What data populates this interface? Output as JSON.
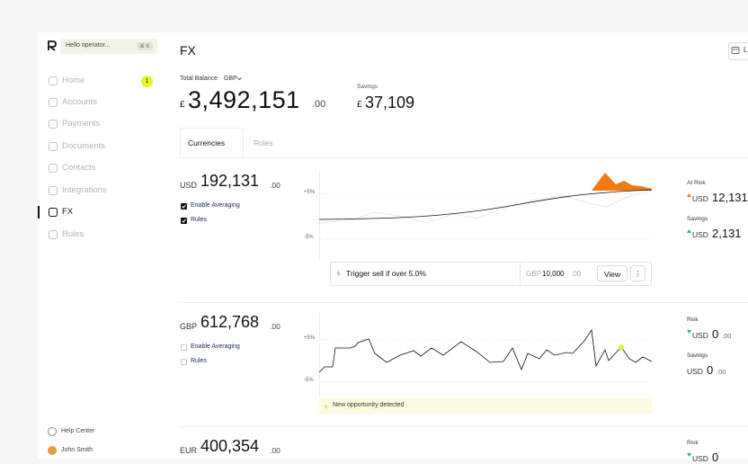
{
  "sidebar": {
    "search": "Hello operator...",
    "shortcut": "⌘ K",
    "nav": [
      {
        "label": "Home",
        "badge": "1"
      },
      {
        "label": "Accounts"
      },
      {
        "label": "Payments"
      },
      {
        "label": "Documents"
      },
      {
        "label": "Contacts"
      },
      {
        "label": "Integrations"
      },
      {
        "label": "FX",
        "active": true
      },
      {
        "label": "Rules"
      }
    ],
    "footer": [
      "Help Center",
      "John Smith"
    ]
  },
  "header": {
    "title": "FX",
    "button": "L"
  },
  "balance": {
    "label": "Total Balance",
    "currency": "GBP",
    "symbol": "£",
    "amount": "3,492,151",
    "cents": ".00"
  },
  "savings": {
    "label": "Savings",
    "symbol": "£",
    "amount": "37,109"
  },
  "tabs": [
    "Currencies",
    "Rules"
  ],
  "cards": [
    {
      "currency": "USD",
      "amount": "192,131",
      "cents": ".00",
      "options": [
        {
          "label": "Enable Averaging",
          "checked": true
        },
        {
          "label": "Rules",
          "checked": true
        }
      ],
      "axis": [
        "+5%",
        "-5%"
      ],
      "rule": {
        "text": "Trigger sell if over 5.0%",
        "currency": "GBP",
        "amount": "10,000",
        "cents": ".00",
        "action": "View",
        "more": "⋮"
      },
      "stats": [
        {
          "label": "At Risk",
          "trend": "up",
          "currency": "USD",
          "amount": "12,131"
        },
        {
          "label": "Savings",
          "trend": "up",
          "currency": "USD",
          "amount": "2,131"
        }
      ]
    },
    {
      "currency": "GBP",
      "amount": "612,768",
      "cents": ".00",
      "options": [
        {
          "label": "Enable Averaging",
          "checked": false
        },
        {
          "label": "Rules",
          "checked": false
        }
      ],
      "axis": [
        "+5%",
        "-5%"
      ],
      "banner": "New opportunity detected",
      "stats": [
        {
          "label": "Risk",
          "trend": "down",
          "currency": "USD",
          "amount": "0",
          "cents": ".00"
        },
        {
          "label": "Savings",
          "currency": "USD",
          "amount": "0",
          "cents": ".00"
        }
      ]
    },
    {
      "currency": "EUR",
      "amount": "400,354",
      "cents": ".00",
      "stats": [
        {
          "label": "Risk",
          "trend": "down",
          "currency": "USD",
          "amount": "0"
        }
      ]
    }
  ]
}
